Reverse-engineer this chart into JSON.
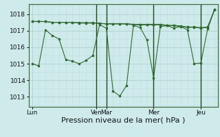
{
  "background_color": "#ceeaea",
  "grid_color_major": "#aacccc",
  "grid_color_minor": "#c0dede",
  "line_color": "#2d6a2d",
  "marker_color": "#2d6a2d",
  "xlabel": "Pression niveau de la mer( hPa )",
  "xlabel_fontsize": 8,
  "ylim": [
    1012.4,
    1018.6
  ],
  "yticks": [
    1013,
    1014,
    1015,
    1016,
    1017,
    1018
  ],
  "xtick_labels": [
    "Lun",
    "Ven",
    "Mar",
    "Mer",
    "Jeu"
  ],
  "xtick_positions": [
    0,
    9.5,
    11,
    18,
    25
  ],
  "total_points": 28,
  "line1_y": [
    1015.0,
    1014.88,
    1017.05,
    1016.7,
    1016.5,
    1015.25,
    1015.15,
    1015.0,
    1015.2,
    1015.5,
    1017.35,
    1017.15,
    1013.35,
    1013.05,
    1013.7,
    1017.3,
    1017.2,
    1016.45,
    1014.15,
    1017.25,
    1017.3,
    1017.15,
    1017.25,
    1017.05,
    1015.0,
    1015.05,
    1017.1,
    1018.25
  ],
  "line2_y": [
    1017.55,
    1017.55,
    1017.55,
    1017.5,
    1017.5,
    1017.5,
    1017.5,
    1017.45,
    1017.45,
    1017.45,
    1017.45,
    1017.4,
    1017.4,
    1017.4,
    1017.4,
    1017.35,
    1017.35,
    1017.35,
    1017.35,
    1017.35,
    1017.3,
    1017.3,
    1017.25,
    1017.2,
    1017.2,
    1017.15,
    1017.2,
    1018.25
  ],
  "line3_y": [
    1017.55,
    1017.55,
    1017.55,
    1017.5,
    1017.5,
    1017.5,
    1017.5,
    1017.48,
    1017.48,
    1017.48,
    1017.42,
    1017.42,
    1017.42,
    1017.42,
    1017.42,
    1017.38,
    1017.38,
    1017.38,
    1017.38,
    1017.38,
    1017.32,
    1017.32,
    1017.28,
    1017.22,
    1017.22,
    1017.18,
    1017.22,
    1018.25
  ],
  "vlines_x": [
    9.5,
    11,
    18,
    25
  ],
  "vline_color": "#1a4a1a",
  "figsize": [
    3.2,
    2.0
  ],
  "dpi": 100
}
